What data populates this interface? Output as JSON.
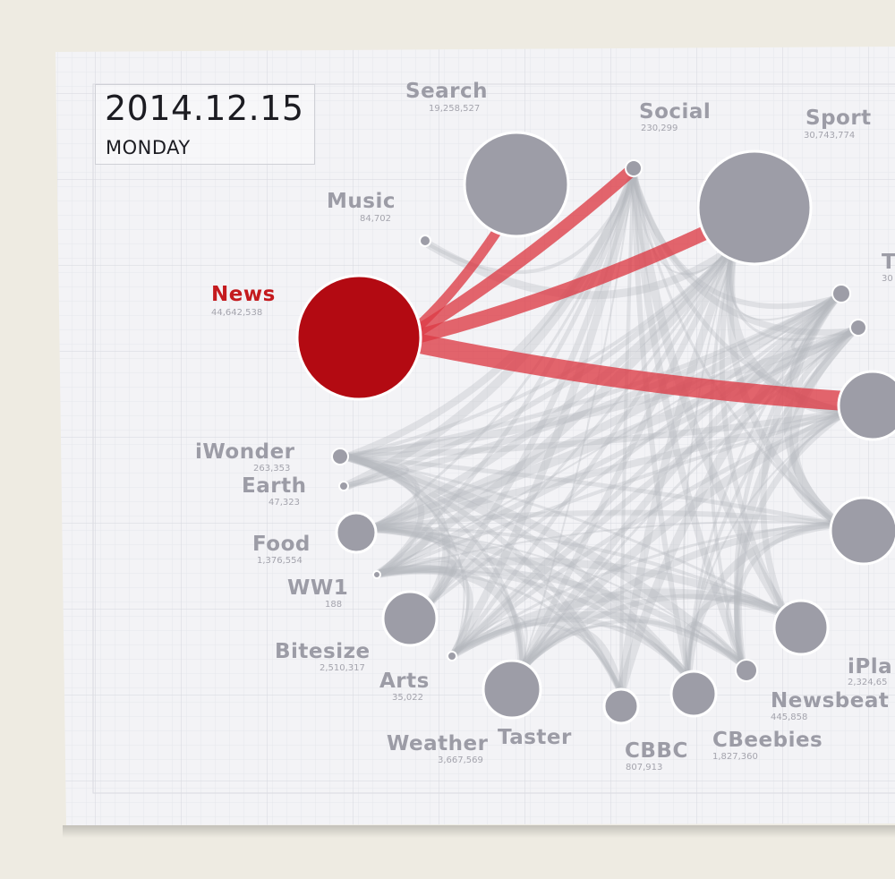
{
  "header": {
    "date": "2014.12.15",
    "day": "MONDAY"
  },
  "colors": {
    "background": "#eeebe2",
    "poster": "#f3f3f6",
    "node": "#9d9da7",
    "highlight": "#b30a12",
    "highlight_link": "#dc3b45",
    "link": "#b5b6bf"
  },
  "selected": "News",
  "nodes": [
    {
      "name": "News",
      "count": "44,642,538",
      "value": 44642538
    },
    {
      "name": "Search",
      "count": "19,258,527",
      "value": 19258527
    },
    {
      "name": "Social",
      "count": "230,299",
      "value": 230299
    },
    {
      "name": "Sport",
      "count": "30,743,774",
      "value": 30743774
    },
    {
      "name": "Music",
      "count": "84,702",
      "value": 84702
    },
    {
      "name": "T",
      "count": "30"
    },
    {
      "name": "iWonder",
      "count": "263,353",
      "value": 263353
    },
    {
      "name": "Earth",
      "count": "47,323",
      "value": 47323
    },
    {
      "name": "Food",
      "count": "1,376,554",
      "value": 1376554
    },
    {
      "name": "WW1",
      "count": "188",
      "value": 188
    },
    {
      "name": "Bitesize",
      "count": "2,510,317",
      "value": 2510317
    },
    {
      "name": "Arts",
      "count": "35,022",
      "value": 35022
    },
    {
      "name": "Weather",
      "count": "3,667,569",
      "value": 3667569
    },
    {
      "name": "Taster",
      "count": ""
    },
    {
      "name": "CBBC",
      "count": "807,913",
      "value": 807913
    },
    {
      "name": "CBeebies",
      "count": "1,827,360",
      "value": 1827360
    },
    {
      "name": "Newsbeat",
      "count": "445,858",
      "value": 445858
    },
    {
      "name": "iPla",
      "count": "2,324,65"
    }
  ]
}
